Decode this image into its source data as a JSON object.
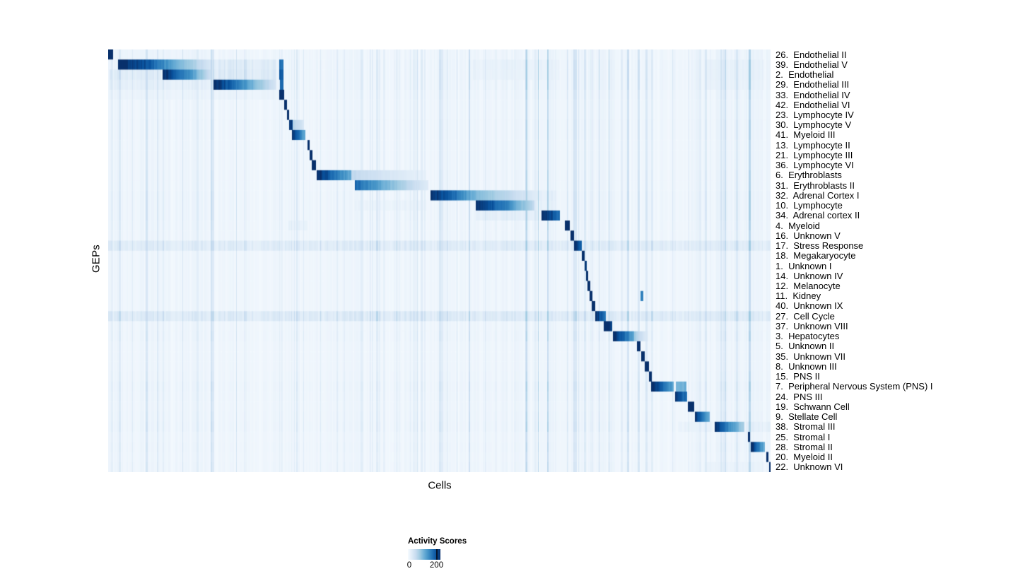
{
  "figure": {
    "y_axis_label": "GEPs",
    "x_axis_label": "Cells"
  },
  "legend": {
    "title": "Activity Scores",
    "min_label": "0",
    "tick_label": "200",
    "tick_value": 200,
    "scale_max": 230,
    "colormap": [
      "#f7fbff",
      "#deebf7",
      "#c6dbef",
      "#9ecae1",
      "#6baed6",
      "#4292c6",
      "#2171b5",
      "#08519c",
      "#08306b"
    ]
  },
  "chart_data": {
    "type": "heatmap",
    "title": "",
    "xlabel": "Cells",
    "ylabel": "GEPs",
    "colorbar": {
      "title": "Activity Scores",
      "ticks": [
        0,
        200
      ]
    },
    "value_units": "activity score",
    "value_range": [
      0,
      230
    ],
    "n_rows": 42,
    "blocks_format": "[x_start_fraction, x_end_fraction, score_at_start, score_at_end]",
    "stripes_format": "[x_start_fraction, x_end_fraction, stripe_amplitude_score]",
    "noise_regions": [
      [
        0.0,
        0.16,
        1.2
      ],
      [
        0.63,
        0.78,
        1.45
      ],
      [
        0.88,
        1.0,
        1.45
      ]
    ],
    "rows": [
      {
        "label": "26.  Endothelial II",
        "blocks": [
          [
            0.0,
            0.007,
            230,
            230
          ]
        ],
        "stripes": [
          [
            0.01,
            0.16,
            18
          ]
        ],
        "noise": 1
      },
      {
        "label": "39.  Endothelial V",
        "blocks": [
          [
            0.014,
            0.06,
            230,
            185
          ],
          [
            0.06,
            0.157,
            185,
            30
          ],
          [
            0.258,
            0.264,
            170,
            170
          ]
        ],
        "stripes": [
          [
            0.159,
            0.253,
            55
          ],
          [
            0.55,
            0.68,
            28
          ],
          [
            0.9,
            0.99,
            32
          ]
        ],
        "noise": 1.2
      },
      {
        "label": "2.  Endothelial",
        "blocks": [
          [
            0.082,
            0.122,
            230,
            140
          ],
          [
            0.122,
            0.157,
            140,
            40
          ],
          [
            0.258,
            0.264,
            190,
            190
          ]
        ],
        "stripes": [
          [
            0.002,
            0.08,
            52
          ],
          [
            0.159,
            0.253,
            62
          ],
          [
            0.55,
            0.68,
            26
          ],
          [
            0.9,
            0.99,
            32
          ]
        ],
        "noise": 1.2
      },
      {
        "label": "29.  Endothelial III",
        "blocks": [
          [
            0.159,
            0.212,
            230,
            120
          ],
          [
            0.212,
            0.253,
            120,
            35
          ],
          [
            0.259,
            0.264,
            180,
            180
          ]
        ],
        "stripes": [
          [
            0.002,
            0.157,
            38
          ],
          [
            0.9,
            0.99,
            28
          ]
        ],
        "noise": 1.2
      },
      {
        "label": "33.  Endothelial IV",
        "blocks": [
          [
            0.258,
            0.265,
            230,
            230
          ]
        ],
        "stripes": [
          [
            0.002,
            0.25,
            22
          ]
        ],
        "noise": 1
      },
      {
        "label": "42.  Endothelial VI",
        "blocks": [
          [
            0.265,
            0.269,
            230,
            230
          ]
        ],
        "noise": 0.9
      },
      {
        "label": "23.  Lymphocyte IV",
        "blocks": [
          [
            0.269,
            0.273,
            230,
            230
          ]
        ],
        "noise": 0.9
      },
      {
        "label": "30.  Lymphocyte V",
        "blocks": [
          [
            0.273,
            0.278,
            205,
            205
          ],
          [
            0.278,
            0.295,
            70,
            35
          ]
        ],
        "noise": 1
      },
      {
        "label": "41.  Myeloid III",
        "blocks": [
          [
            0.277,
            0.297,
            230,
            110
          ]
        ],
        "noise": 1
      },
      {
        "label": "13.  Lymphocyte II",
        "blocks": [
          [
            0.3,
            0.304,
            230,
            230
          ]
        ],
        "noise": 0.9
      },
      {
        "label": "21.  Lymphocyte III",
        "blocks": [
          [
            0.304,
            0.308,
            230,
            230
          ]
        ],
        "noise": 0.9
      },
      {
        "label": "36.  Lymphocyte VI",
        "blocks": [
          [
            0.307,
            0.313,
            230,
            230
          ]
        ],
        "noise": 0.9
      },
      {
        "label": "6.  Erythroblasts",
        "blocks": [
          [
            0.314,
            0.367,
            230,
            110
          ],
          [
            0.367,
            0.48,
            58,
            15
          ]
        ],
        "noise": 1
      },
      {
        "label": "31.  Erythroblasts II",
        "blocks": [
          [
            0.372,
            0.43,
            175,
            90
          ],
          [
            0.43,
            0.483,
            90,
            25
          ]
        ],
        "noise": 1
      },
      {
        "label": "32.  Adrenal Cortex I",
        "blocks": [
          [
            0.486,
            0.525,
            230,
            160
          ],
          [
            0.525,
            0.552,
            160,
            105
          ],
          [
            0.552,
            0.655,
            105,
            18
          ]
        ],
        "stripes": [
          [
            0.655,
            0.676,
            38
          ]
        ],
        "noise": 1.1
      },
      {
        "label": "10.  Lymphocyte",
        "blocks": [
          [
            0.554,
            0.6,
            230,
            150
          ],
          [
            0.6,
            0.643,
            150,
            55
          ]
        ],
        "stripes": [
          [
            0.372,
            0.48,
            22
          ],
          [
            0.643,
            0.676,
            33
          ]
        ],
        "noise": 1.1
      },
      {
        "label": "34.  Adrenal cortex II",
        "blocks": [
          [
            0.654,
            0.681,
            230,
            165
          ]
        ],
        "stripes": [
          [
            0.554,
            0.65,
            40
          ]
        ],
        "noise": 1.1
      },
      {
        "label": "4.  Myeloid",
        "blocks": [
          [
            0.689,
            0.696,
            230,
            230
          ]
        ],
        "stripes": [
          [
            0.272,
            0.3,
            30
          ]
        ],
        "noise": 1
      },
      {
        "label": "16.  Unknown V",
        "blocks": [
          [
            0.697,
            0.703,
            230,
            230
          ]
        ],
        "noise": 0.9
      },
      {
        "label": "17.  Stress Response",
        "blocks": [
          [
            0.703,
            0.715,
            215,
            175
          ]
        ],
        "stripes": [
          [
            0.0,
            1.0,
            52
          ]
        ],
        "noise": 1.2
      },
      {
        "label": "18.  Megakaryocyte",
        "blocks": [
          [
            0.714,
            0.7185,
            230,
            230
          ]
        ],
        "noise": 0.8
      },
      {
        "label": "1.  Unknown I",
        "blocks": [
          [
            0.7185,
            0.7215,
            205,
            205
          ]
        ],
        "noise": 0.8
      },
      {
        "label": "14.  Unknown IV",
        "blocks": [
          [
            0.7205,
            0.7245,
            230,
            230
          ]
        ],
        "noise": 0.8
      },
      {
        "label": "12.  Melanocyte",
        "blocks": [
          [
            0.7235,
            0.7275,
            230,
            230
          ]
        ],
        "noise": 0.8
      },
      {
        "label": "11.  Kidney",
        "blocks": [
          [
            0.7265,
            0.7305,
            230,
            230
          ],
          [
            0.803,
            0.807,
            145,
            145
          ]
        ],
        "noise": 0.8
      },
      {
        "label": "40.  Unknown IX",
        "blocks": [
          [
            0.7295,
            0.735,
            230,
            230
          ]
        ],
        "noise": 0.8
      },
      {
        "label": "27.  Cell Cycle",
        "blocks": [
          [
            0.735,
            0.751,
            230,
            150
          ]
        ],
        "stripes": [
          [
            0.0,
            1.0,
            58
          ]
        ],
        "noise": 1.2
      },
      {
        "label": "37.  Unknown VIII",
        "blocks": [
          [
            0.748,
            0.76,
            230,
            195
          ]
        ],
        "noise": 0.9
      },
      {
        "label": "3.  Hepatocytes",
        "blocks": [
          [
            0.762,
            0.793,
            230,
            120
          ],
          [
            0.793,
            0.815,
            88,
            15
          ]
        ],
        "noise": 1
      },
      {
        "label": "5.  Unknown II",
        "blocks": [
          [
            0.798,
            0.803,
            230,
            230
          ]
        ],
        "noise": 0.8
      },
      {
        "label": "35.  Unknown VII",
        "blocks": [
          [
            0.804,
            0.81,
            215,
            215
          ]
        ],
        "noise": 0.8
      },
      {
        "label": "8.  Unknown III",
        "blocks": [
          [
            0.81,
            0.8155,
            230,
            230
          ]
        ],
        "noise": 0.8
      },
      {
        "label": "15.  PNS II",
        "blocks": [
          [
            0.8155,
            0.82,
            230,
            230
          ]
        ],
        "noise": 0.9
      },
      {
        "label": "7.  Peripheral Nervous System (PNS) I",
        "blocks": [
          [
            0.819,
            0.853,
            230,
            118
          ],
          [
            0.856,
            0.872,
            108,
            108
          ]
        ],
        "noise": 1.1
      },
      {
        "label": "24.  PNS III",
        "blocks": [
          [
            0.855,
            0.873,
            230,
            158
          ]
        ],
        "noise": 1
      },
      {
        "label": "19.  Schwann Cell",
        "blocks": [
          [
            0.875,
            0.884,
            230,
            230
          ]
        ],
        "noise": 0.9
      },
      {
        "label": "9.  Stellate Cell",
        "blocks": [
          [
            0.885,
            0.908,
            230,
            100
          ]
        ],
        "noise": 1
      },
      {
        "label": "38.  Stromal III",
        "blocks": [
          [
            0.915,
            0.96,
            230,
            68
          ]
        ],
        "stripes": [
          [
            0.86,
            0.912,
            28
          ],
          [
            0.962,
            1.0,
            38
          ]
        ],
        "noise": 1.1
      },
      {
        "label": "25.  Stromal I",
        "blocks": [
          [
            0.965,
            0.969,
            230,
            230
          ]
        ],
        "noise": 0.8
      },
      {
        "label": "28.  Stromal II",
        "blocks": [
          [
            0.97,
            0.991,
            230,
            108
          ]
        ],
        "noise": 0.9
      },
      {
        "label": "20.  Myeloid II",
        "blocks": [
          [
            0.9935,
            0.9965,
            230,
            230
          ]
        ],
        "noise": 0.8
      },
      {
        "label": "22.  Unknown VI",
        "blocks": [
          [
            0.997,
            1.0,
            230,
            230
          ]
        ],
        "stripes": [
          [
            0.9,
            0.99,
            24
          ]
        ],
        "noise": 0.9
      }
    ]
  }
}
